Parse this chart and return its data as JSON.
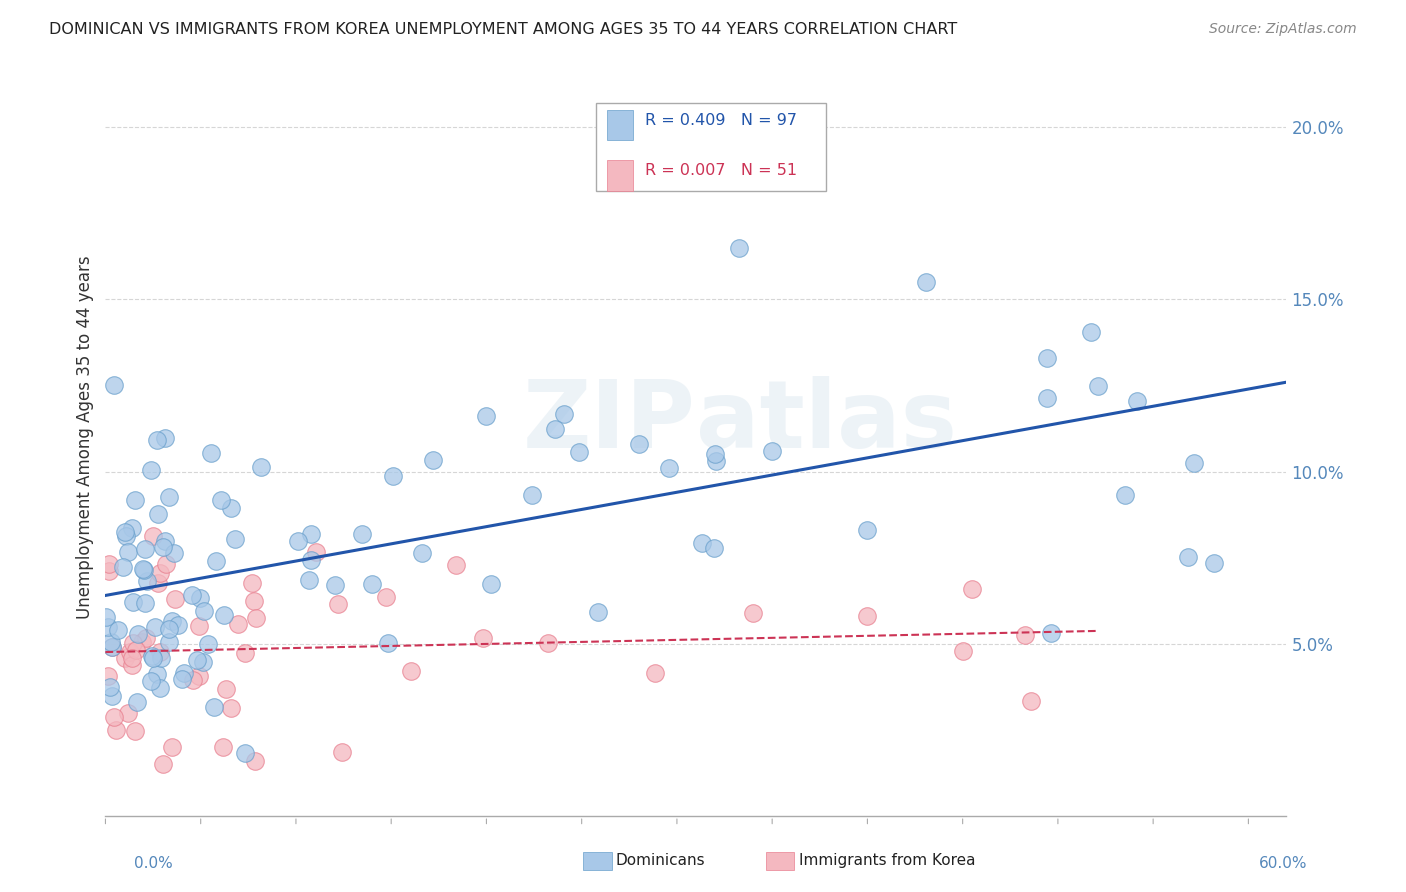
{
  "title": "DOMINICAN VS IMMIGRANTS FROM KOREA UNEMPLOYMENT AMONG AGES 35 TO 44 YEARS CORRELATION CHART",
  "source": "Source: ZipAtlas.com",
  "ylabel": "Unemployment Among Ages 35 to 44 years",
  "xlim": [
    0.0,
    0.62
  ],
  "ylim": [
    -0.025,
    0.22
  ],
  "plot_ylim": [
    0.0,
    0.22
  ],
  "yticks": [
    0.05,
    0.1,
    0.15,
    0.2
  ],
  "ytick_labels": [
    "5.0%",
    "10.0%",
    "15.0%",
    "20.0%"
  ],
  "blue_color": "#a8c8e8",
  "blue_edge_color": "#6aa0cc",
  "pink_color": "#f4b8c0",
  "pink_edge_color": "#e88090",
  "blue_line_color": "#2255aa",
  "pink_line_color": "#cc3355",
  "watermark_color": "#d8e4f0",
  "background_color": "#ffffff",
  "grid_color": "#cccccc",
  "title_color": "#222222",
  "source_color": "#888888",
  "axis_label_color": "#333333",
  "tick_label_color": "#5588bb",
  "legend_border_color": "#aaaaaa"
}
